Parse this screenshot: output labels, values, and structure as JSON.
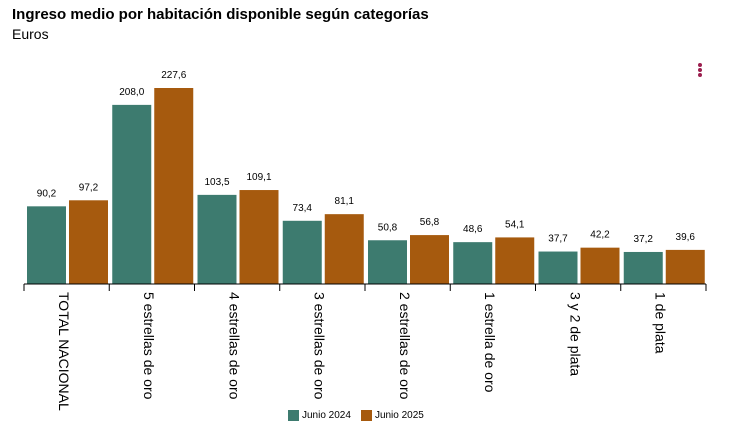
{
  "header": {
    "title": "Ingreso medio por habitación disponible según categorías",
    "subtitle": "Euros"
  },
  "menu": {
    "icon": "more-vertical-icon"
  },
  "chart_data": {
    "type": "bar",
    "title": "Ingreso medio por habitación disponible según categorías",
    "subtitle": "Euros",
    "categories": [
      "TOTAL NACIONAL",
      "5 estrellas de oro",
      "4 estrellas de oro",
      "3 estrellas de oro",
      "2 estrellas de oro",
      "1 estrella de oro",
      "3 y 2 de plata",
      "1 de plata"
    ],
    "series": [
      {
        "name": "Junio 2024",
        "color": "#3d7b6f",
        "values": [
          90.2,
          208.0,
          103.5,
          73.4,
          50.8,
          48.6,
          37.7,
          37.2
        ],
        "labels": [
          "90,2",
          "208,0",
          "103,5",
          "73,4",
          "50,8",
          "48,6",
          "37,7",
          "37,2"
        ]
      },
      {
        "name": "Junio 2025",
        "color": "#a65a0e",
        "values": [
          97.2,
          227.6,
          109.1,
          81.1,
          56.8,
          54.1,
          42.2,
          39.6
        ],
        "labels": [
          "97,2",
          "227,6",
          "109,1",
          "81,1",
          "56,8",
          "54,1",
          "42,2",
          "39,6"
        ]
      }
    ],
    "ylim": [
      0,
      227.6
    ],
    "grid": false,
    "legend_position": "bottom"
  }
}
